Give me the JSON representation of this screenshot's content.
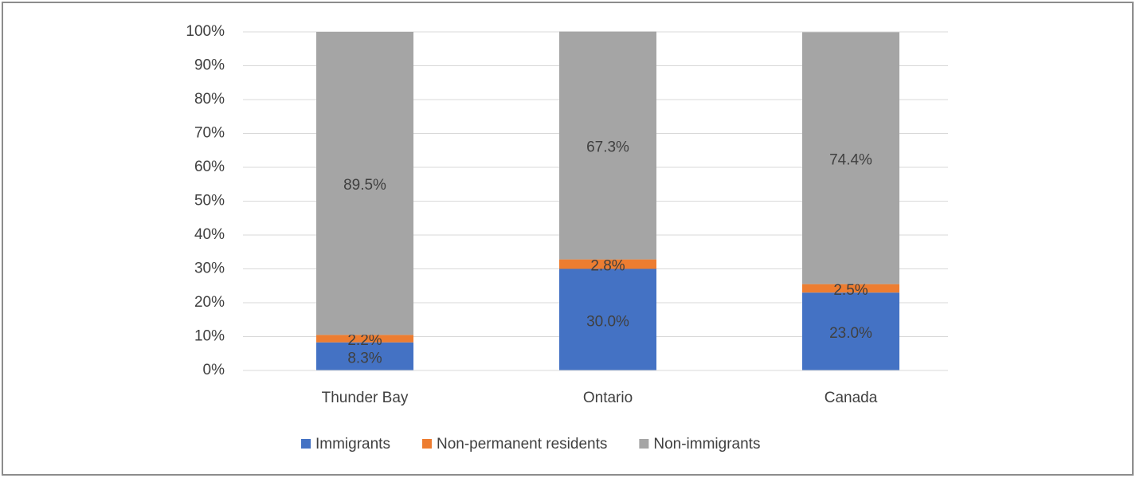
{
  "chart_data": {
    "type": "stacked_bar",
    "categories": [
      "Thunder Bay",
      "Ontario",
      "Canada"
    ],
    "series": [
      {
        "name": "Immigrants",
        "color": "#4472c4",
        "values": [
          8.3,
          30.0,
          23.0
        ],
        "value_labels": [
          "8.3%",
          "30.0%",
          "23.0%"
        ]
      },
      {
        "name": "Non-permanent residents",
        "color": "#ed7d31",
        "values": [
          2.2,
          2.8,
          2.5
        ],
        "value_labels": [
          "2.2%",
          "2.8%",
          "2.5%"
        ]
      },
      {
        "name": "Non-immigrants",
        "color": "#a5a5a5",
        "values": [
          89.5,
          67.3,
          74.4
        ],
        "value_labels": [
          "89.5%",
          "67.3%",
          "74.4%"
        ]
      }
    ],
    "ylim": [
      0,
      100
    ],
    "yticks": [
      {
        "value": 0,
        "label": "0%"
      },
      {
        "value": 10,
        "label": "10%"
      },
      {
        "value": 20,
        "label": "20%"
      },
      {
        "value": 30,
        "label": "30%"
      },
      {
        "value": 40,
        "label": "40%"
      },
      {
        "value": 50,
        "label": "50%"
      },
      {
        "value": 60,
        "label": "60%"
      },
      {
        "value": 70,
        "label": "70%"
      },
      {
        "value": 80,
        "label": "80%"
      },
      {
        "value": 90,
        "label": "90%"
      },
      {
        "value": 100,
        "label": "100%"
      }
    ],
    "grid": true,
    "legend": "bottom"
  }
}
